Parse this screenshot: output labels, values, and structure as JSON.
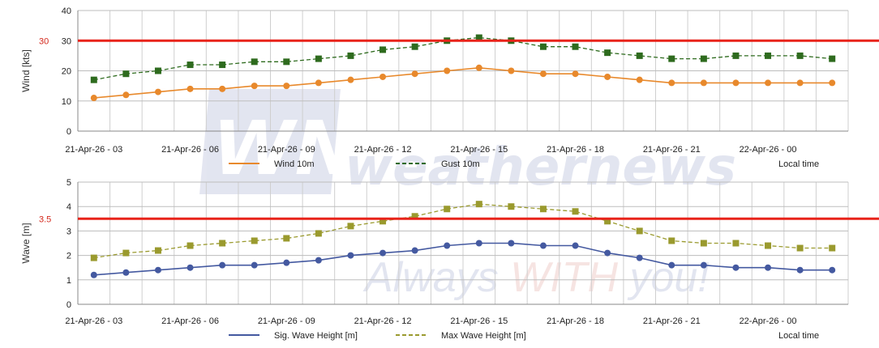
{
  "chart_data": [
    {
      "type": "line",
      "ylabel": "Wind [kts]",
      "ylim": [
        0,
        40
      ],
      "yticks": [
        "0",
        "10",
        "20",
        "30",
        "40"
      ],
      "xtick_labels": [
        "21-Apr-26 - 03",
        "21-Apr-26 - 06",
        "21-Apr-26 - 09",
        "21-Apr-26 - 12",
        "21-Apr-26 - 15",
        "21-Apr-26 - 18",
        "21-Apr-26 - 21",
        "22-Apr-26 - 00"
      ],
      "grid": true,
      "legend_placement": "bottom",
      "threshold": {
        "value": 30,
        "label": "30",
        "color": "#e8231a"
      },
      "series": [
        {
          "name": "Wind 10m",
          "color": "#e8892c",
          "style": "solid",
          "marker": "circle",
          "values": [
            11,
            12,
            13,
            14,
            14,
            15,
            15,
            16,
            17,
            18,
            19,
            20,
            21,
            20,
            19,
            19,
            18,
            17,
            16,
            16,
            16,
            16,
            16,
            16
          ]
        },
        {
          "name": "Gust 10m",
          "color": "#2e6b1e",
          "style": "dashed",
          "marker": "square",
          "values": [
            17,
            19,
            20,
            22,
            22,
            23,
            23,
            24,
            25,
            27,
            28,
            30,
            31,
            30,
            28,
            28,
            26,
            25,
            24,
            24,
            25,
            25,
            25,
            24
          ]
        }
      ],
      "note": "Local time"
    },
    {
      "type": "line",
      "ylabel": "Wave [m]",
      "ylim": [
        0,
        5
      ],
      "yticks": [
        "0",
        "1",
        "2",
        "3",
        "4",
        "5"
      ],
      "xtick_labels": [
        "21-Apr-26 - 03",
        "21-Apr-26 - 06",
        "21-Apr-26 - 09",
        "21-Apr-26 - 12",
        "21-Apr-26 - 15",
        "21-Apr-26 - 18",
        "21-Apr-26 - 21",
        "22-Apr-26 - 00"
      ],
      "grid": true,
      "legend_placement": "bottom",
      "threshold": {
        "value": 3.5,
        "label": "3.5",
        "color": "#e8231a"
      },
      "series": [
        {
          "name": "Sig. Wave Height [m]",
          "color": "#4459a0",
          "style": "solid",
          "marker": "circle",
          "values": [
            1.2,
            1.3,
            1.4,
            1.5,
            1.6,
            1.6,
            1.7,
            1.8,
            2.0,
            2.1,
            2.2,
            2.4,
            2.5,
            2.5,
            2.4,
            2.4,
            2.1,
            1.9,
            1.6,
            1.6,
            1.5,
            1.5,
            1.4,
            1.4
          ]
        },
        {
          "name": "Max Wave Height [m]",
          "color": "#9a9a2e",
          "style": "dashed",
          "marker": "square",
          "values": [
            1.9,
            2.1,
            2.2,
            2.4,
            2.5,
            2.6,
            2.7,
            2.9,
            3.2,
            3.4,
            3.6,
            3.9,
            4.1,
            4.0,
            3.9,
            3.8,
            3.4,
            3.0,
            2.6,
            2.5,
            2.5,
            2.4,
            2.3,
            2.3
          ]
        }
      ],
      "note": "Local time"
    }
  ],
  "watermark": {
    "logo_text": "WN",
    "brand_text": "weathernews",
    "tagline_prefix": "Always ",
    "tagline_emph": "WITH",
    "tagline_suffix": " you!"
  }
}
